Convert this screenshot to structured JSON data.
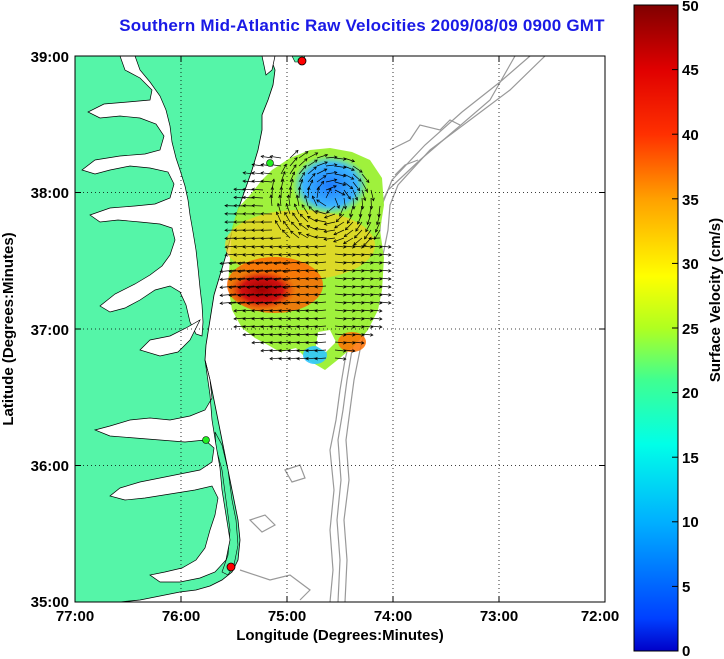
{
  "title": "Southern Mid-Atlantic Raw Velocities 2009/08/09 0900 GMT",
  "x_axis": {
    "label": "Longitude (Degrees:Minutes)",
    "ticks": [
      "77:00",
      "76:00",
      "75:00",
      "74:00",
      "73:00",
      "72:00"
    ]
  },
  "y_axis": {
    "label": "Latitude (Degrees:Minutes)",
    "ticks": [
      "39:00",
      "38:00",
      "37:00",
      "36:00",
      "35:00"
    ]
  },
  "colorbar": {
    "label": "Surface Velocity (cm/s)",
    "ticks": [
      "50",
      "45",
      "40",
      "35",
      "30",
      "25",
      "20",
      "15",
      "10",
      "5",
      "0"
    ],
    "min": 0,
    "max": 50,
    "colormap": "jet"
  },
  "colors": {
    "land": "#55f5a8",
    "title": "#1a1ae6",
    "bathymetry": "#999999"
  },
  "chart_data": {
    "type": "map",
    "xlim": [
      -77,
      -72
    ],
    "ylim": [
      35,
      39
    ],
    "grid": "dotted",
    "markers": [
      {
        "lon": -74.87,
        "lat": 38.98,
        "color": "red"
      },
      {
        "lon": -75.18,
        "lat": 38.22,
        "color": "green"
      },
      {
        "lon": -75.72,
        "lat": 36.18,
        "color": "green"
      },
      {
        "lon": -75.48,
        "lat": 35.25,
        "color": "red"
      }
    ]
  }
}
